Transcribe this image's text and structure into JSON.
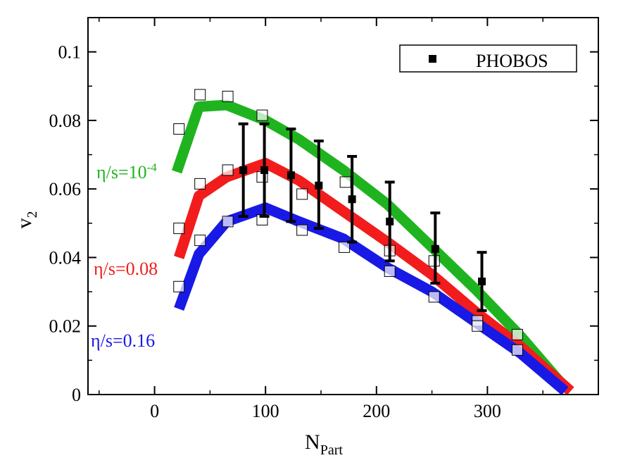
{
  "chart_data": {
    "type": "line",
    "xlabel": "N",
    "xlabel_sub": "Part",
    "ylabel": "v",
    "ylabel_sub": "2",
    "xlim": [
      -60,
      400
    ],
    "ylim": [
      0,
      0.11
    ],
    "x_ticks": [
      0,
      100,
      200,
      300
    ],
    "x_tick_labels": [
      "0",
      "100",
      "200",
      "300"
    ],
    "y_ticks": [
      0,
      0.02,
      0.04,
      0.06,
      0.08,
      0.1
    ],
    "y_tick_labels": [
      "0",
      "0.02",
      "0.04",
      "0.06",
      "0.08",
      "0.1"
    ],
    "grid": false,
    "legend": {
      "position": "top-right",
      "entries": [
        {
          "label": "PHOBOS",
          "marker": "filled-square"
        }
      ]
    },
    "series": [
      {
        "label_parts": [
          "η/s=10",
          "-4"
        ],
        "color": "#1fb41f",
        "band": {
          "x": [
            20,
            40,
            65,
            100,
            130,
            170,
            210,
            250,
            290,
            330,
            370
          ],
          "y": [
            0.065,
            0.084,
            0.0845,
            0.08,
            0.0745,
            0.0655,
            0.0555,
            0.043,
            0.0305,
            0.017,
            0.002
          ]
        },
        "markers": {
          "x": [
            22,
            41,
            66,
            97
          ],
          "y": [
            0.0775,
            0.0875,
            0.087,
            0.0815
          ]
        }
      },
      {
        "label_parts": [
          "η/s=0.08"
        ],
        "color": "#f21c1c",
        "band": {
          "x": [
            22,
            40,
            65,
            100,
            130,
            170,
            210,
            250,
            290,
            330,
            375
          ],
          "y": [
            0.04,
            0.058,
            0.0635,
            0.0675,
            0.0625,
            0.0535,
            0.0445,
            0.035,
            0.024,
            0.014,
            0.001
          ]
        },
        "markers": {
          "x": [
            22,
            41,
            66,
            97,
            133,
            172,
            212,
            252,
            291,
            327
          ],
          "y": [
            0.0485,
            0.0615,
            0.0655,
            0.0635,
            0.0585,
            0.062,
            0.042,
            0.039,
            0.0215,
            0.0175
          ]
        }
      },
      {
        "label_parts": [
          "η/s=0.16"
        ],
        "color": "#1919e6",
        "band": {
          "x": [
            22,
            40,
            65,
            100,
            130,
            170,
            210,
            250,
            290,
            330,
            370
          ],
          "y": [
            0.025,
            0.041,
            0.0505,
            0.0545,
            0.0505,
            0.0455,
            0.037,
            0.03,
            0.021,
            0.012,
            0.001
          ]
        },
        "markers": {
          "x": [
            22,
            41,
            66,
            97,
            133,
            171,
            212,
            252,
            291,
            327
          ],
          "y": [
            0.0315,
            0.045,
            0.0505,
            0.051,
            0.048,
            0.043,
            0.036,
            0.0285,
            0.02,
            0.013
          ]
        }
      },
      {
        "name": "PHOBOS",
        "type": "errorbar",
        "color": "#000000",
        "x": [
          80,
          99,
          123,
          148,
          178,
          212,
          253,
          295
        ],
        "y": [
          0.0655,
          0.0655,
          0.064,
          0.061,
          0.057,
          0.0505,
          0.0425,
          0.033
        ],
        "yerr_low": [
          0.0135,
          0.0135,
          0.0135,
          0.0125,
          0.0125,
          0.0115,
          0.01,
          0.0085
        ],
        "yerr_high": [
          0.0135,
          0.0135,
          0.0135,
          0.013,
          0.0125,
          0.0115,
          0.0105,
          0.0085
        ]
      }
    ]
  }
}
